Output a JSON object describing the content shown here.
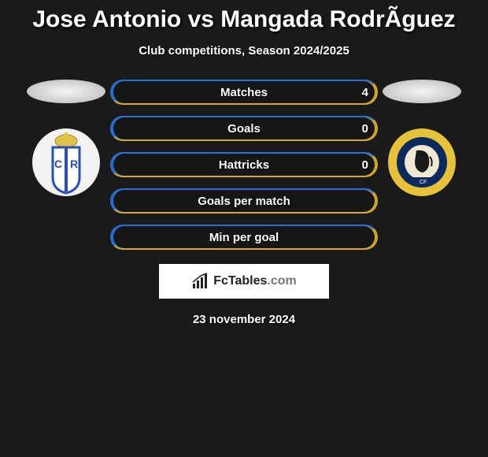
{
  "title": "Jose Antonio vs Mangada RodrÃ­guez",
  "subtitle": "Club competitions, Season 2024/2025",
  "date": "23 november 2024",
  "brand": {
    "primary": "FcTables",
    "suffix": ".com"
  },
  "colors": {
    "left_accent": "#2a70d6",
    "right_accent": "#d6a92a",
    "background": "#1a1a1a",
    "badge_left_bg": "#f2f2f2",
    "badge_left_shield": "#2a4fb0",
    "badge_right_ring": "#e6c23a",
    "badge_right_inner": "#0a2a5e"
  },
  "stats": [
    {
      "label": "Matches",
      "right_value": "4",
      "show_right": true
    },
    {
      "label": "Goals",
      "right_value": "0",
      "show_right": true
    },
    {
      "label": "Hattricks",
      "right_value": "0",
      "show_right": true
    },
    {
      "label": "Goals per match",
      "right_value": "",
      "show_right": false
    },
    {
      "label": "Min per goal",
      "right_value": "",
      "show_right": false
    }
  ]
}
